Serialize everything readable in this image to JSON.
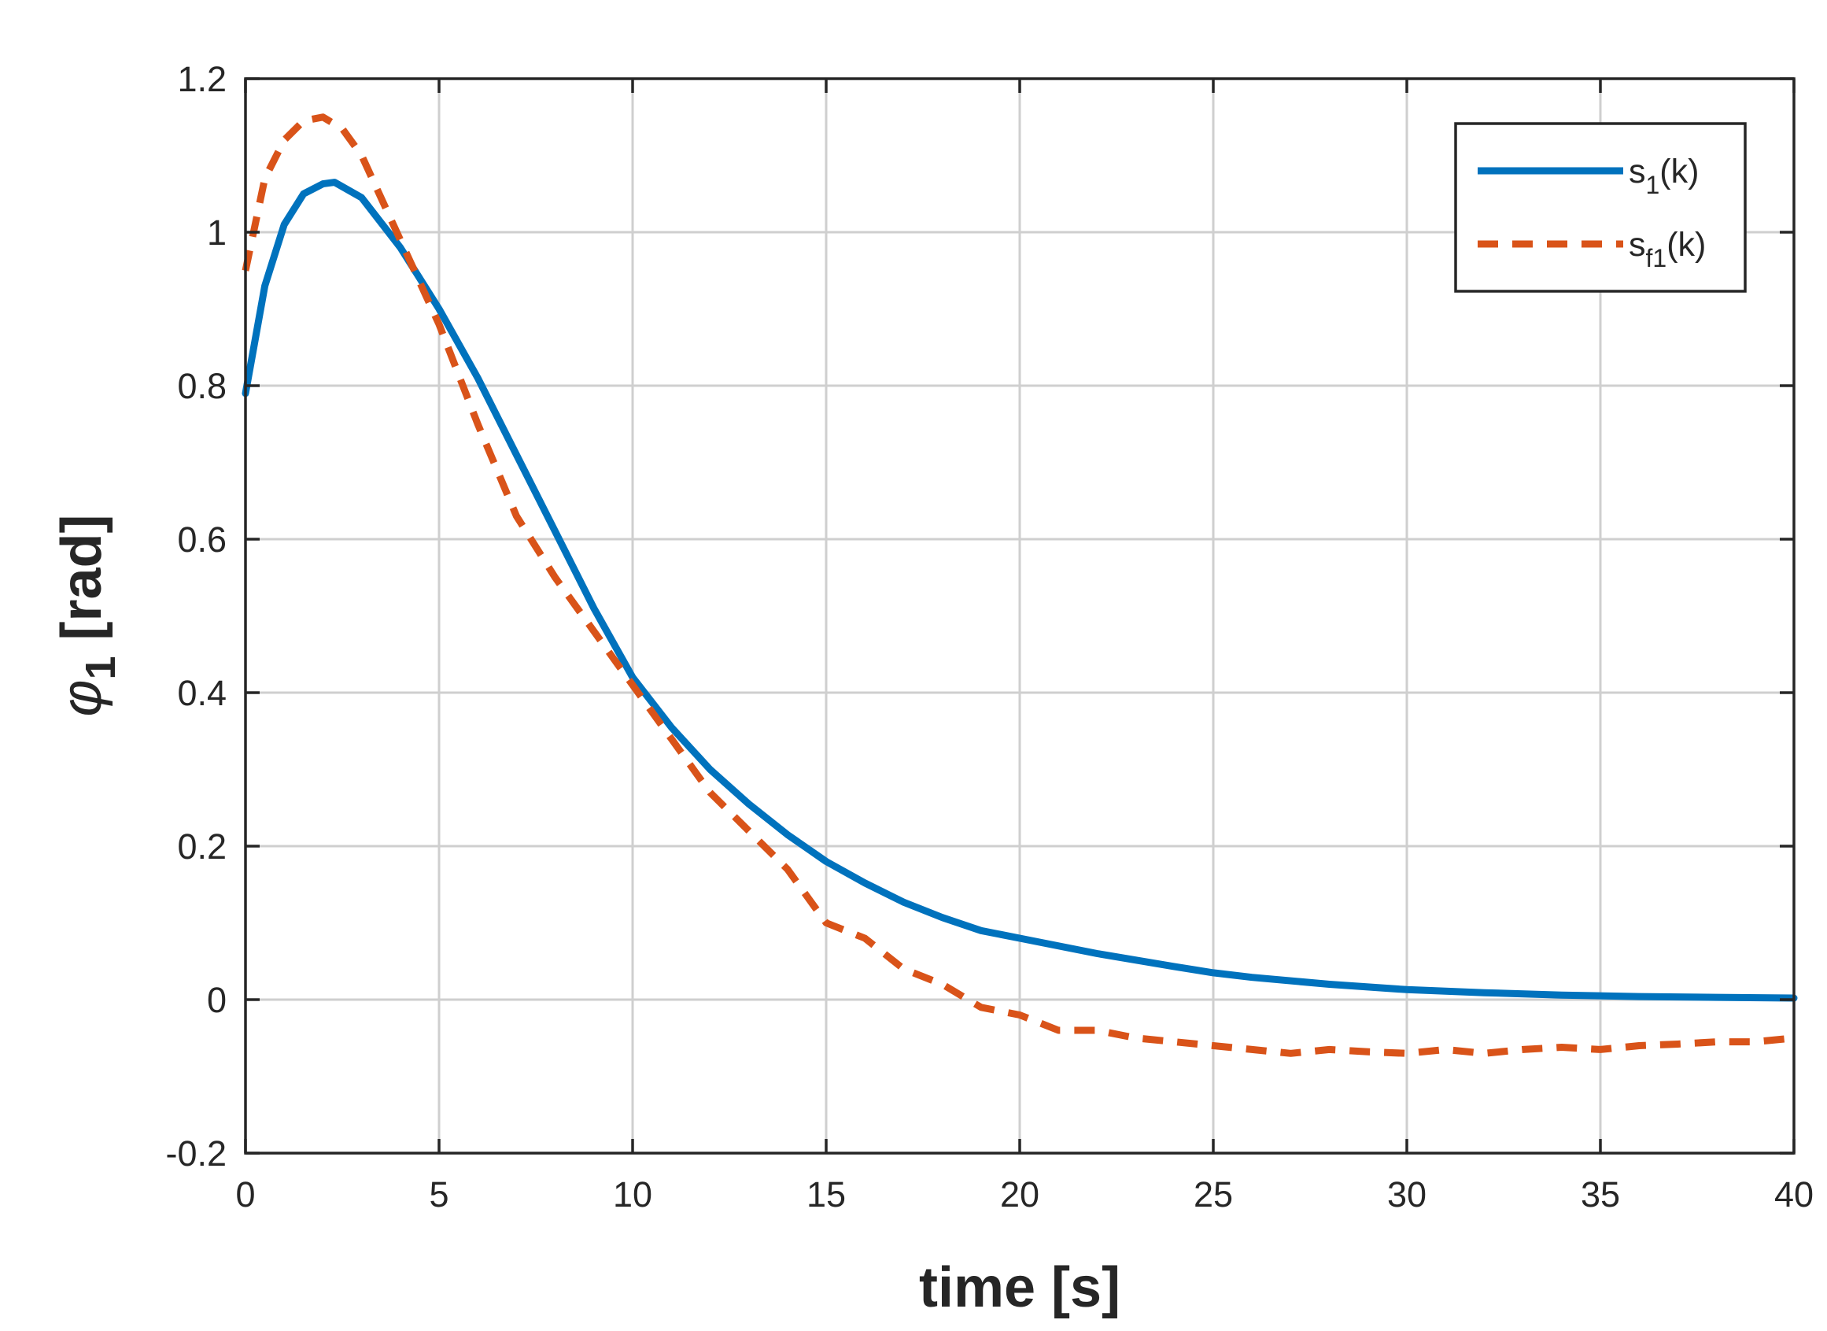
{
  "chart_data": {
    "type": "line",
    "xlabel": "time [s]",
    "ylabel_symbol": "φ",
    "ylabel_subscript": "1",
    "ylabel_unit": " [rad]",
    "xlim": [
      0,
      40
    ],
    "ylim": [
      -0.2,
      1.2
    ],
    "xticks": [
      0,
      5,
      10,
      15,
      20,
      25,
      30,
      35,
      40
    ],
    "xtick_labels": [
      "0",
      "5",
      "10",
      "15",
      "20",
      "25",
      "30",
      "35",
      "40"
    ],
    "yticks": [
      -0.2,
      0,
      0.2,
      0.4,
      0.6,
      0.8,
      1,
      1.2
    ],
    "ytick_labels": [
      "-0.2",
      "0",
      "0.2",
      "0.4",
      "0.6",
      "0.8",
      "1",
      "1.2"
    ],
    "grid": true,
    "legend_position": "top-right",
    "series": [
      {
        "name": "s1(k)",
        "legend_main": "s",
        "legend_sub": "1",
        "legend_tail": "(k)",
        "color": "#0072BD",
        "style": "solid",
        "x": [
          0,
          0.5,
          1,
          1.5,
          2,
          2.3,
          3,
          4,
          5,
          6,
          7,
          8,
          9,
          10,
          11,
          12,
          13,
          14,
          15,
          16,
          17,
          18,
          19,
          20,
          22,
          24,
          25,
          26,
          28,
          30,
          32,
          34,
          36,
          38,
          40
        ],
        "y": [
          0.79,
          0.93,
          1.01,
          1.05,
          1.063,
          1.065,
          1.045,
          0.98,
          0.9,
          0.81,
          0.71,
          0.61,
          0.51,
          0.42,
          0.355,
          0.3,
          0.255,
          0.215,
          0.18,
          0.152,
          0.127,
          0.107,
          0.09,
          0.08,
          0.06,
          0.043,
          0.035,
          0.029,
          0.02,
          0.013,
          0.009,
          0.006,
          0.004,
          0.003,
          0.002
        ]
      },
      {
        "name": "sf1(k)",
        "legend_main": "s",
        "legend_sub": "f1",
        "legend_tail": "(k)",
        "color": "#D95319",
        "style": "dashed",
        "x": [
          0,
          0.5,
          1,
          1.5,
          2,
          2.5,
          3,
          4,
          5,
          6,
          7,
          8,
          9,
          10,
          11,
          12,
          13,
          14,
          15,
          16,
          17,
          18,
          19,
          20,
          21,
          22,
          23,
          24,
          25,
          26,
          27,
          28,
          29,
          30,
          31,
          32,
          33,
          34,
          35,
          36,
          37,
          38,
          39,
          40
        ],
        "y": [
          0.95,
          1.07,
          1.12,
          1.145,
          1.15,
          1.135,
          1.1,
          0.99,
          0.88,
          0.75,
          0.63,
          0.55,
          0.48,
          0.41,
          0.34,
          0.27,
          0.22,
          0.17,
          0.1,
          0.08,
          0.04,
          0.02,
          -0.01,
          -0.02,
          -0.04,
          -0.04,
          -0.05,
          -0.055,
          -0.06,
          -0.065,
          -0.07,
          -0.065,
          -0.068,
          -0.07,
          -0.065,
          -0.07,
          -0.065,
          -0.062,
          -0.065,
          -0.06,
          -0.058,
          -0.055,
          -0.055,
          -0.05
        ]
      }
    ]
  }
}
